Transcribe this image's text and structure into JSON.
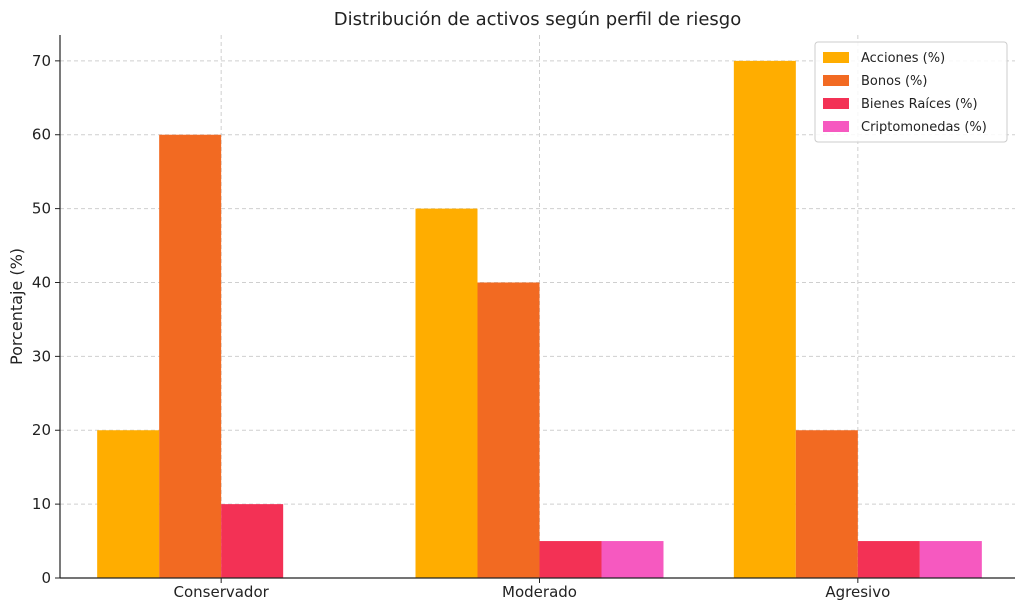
{
  "chart_data": {
    "type": "bar",
    "title": "Distribución de activos según perfil de riesgo",
    "xlabel": "",
    "ylabel": "Porcentaje (%)",
    "categories": [
      "Conservador",
      "Moderado",
      "Agresivo"
    ],
    "series": [
      {
        "name": "Acciones (%)",
        "values": [
          20,
          50,
          70
        ],
        "color": "#ffad00"
      },
      {
        "name": "Bonos (%)",
        "values": [
          60,
          40,
          20
        ],
        "color": "#f26a22"
      },
      {
        "name": "Bienes Raíces (%)",
        "values": [
          10,
          5,
          5
        ],
        "color": "#f33155"
      },
      {
        "name": "Criptomonedas (%)",
        "values": [
          0,
          5,
          5
        ],
        "color": "#f659c0"
      }
    ],
    "ylim": [
      0,
      73.5
    ],
    "yticks": [
      0,
      10,
      20,
      30,
      40,
      50,
      60,
      70
    ],
    "grid": true,
    "legend_position": "top-right"
  }
}
